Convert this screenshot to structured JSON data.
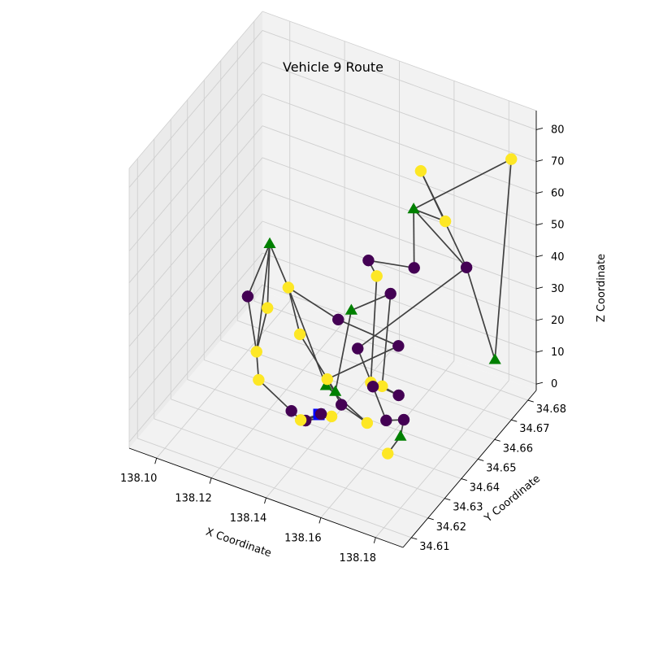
{
  "chart_data": {
    "type": "scatter",
    "projection": "3d",
    "title": "Vehicle 9 Route",
    "xlabel": "X Coordinate",
    "ylabel": "Y Coordinate",
    "zlabel": "Z Coordinate",
    "xlim": [
      138.09,
      138.19
    ],
    "ylim": [
      34.605,
      34.685
    ],
    "zlim": [
      -2,
      86
    ],
    "xticks": [
      "138.10",
      "138.12",
      "138.14",
      "138.16",
      "138.18"
    ],
    "yticks": [
      "34.61",
      "34.62",
      "34.63",
      "34.64",
      "34.65",
      "34.66",
      "34.67",
      "34.68"
    ],
    "zticks": [
      "0",
      "10",
      "20",
      "30",
      "40",
      "50",
      "60",
      "70",
      "80"
    ],
    "grid": true,
    "colors": {
      "route": "#404040",
      "purple_stop": "#440154",
      "yellow_stop": "#fde725",
      "triangle": "#008000",
      "depot": "#0000ff",
      "pane": "#f2f2f2",
      "pane_shade": "#ebebeb",
      "grid": "#cfcfcf"
    },
    "markers": {
      "purple_stop": "circle",
      "yellow_stop": "circle",
      "triangle": "triangle",
      "depot": "square"
    },
    "route": [
      {
        "x": 138.138,
        "y": 34.64,
        "z": 2,
        "kind": "depot"
      },
      {
        "x": 138.142,
        "y": 34.641,
        "z": 2,
        "kind": "yellow_stop"
      },
      {
        "x": 138.138,
        "y": 34.632,
        "z": 5,
        "kind": "purple_stop"
      },
      {
        "x": 138.14,
        "y": 34.638,
        "z": 4,
        "kind": "purple_stop"
      },
      {
        "x": 138.135,
        "y": 34.634,
        "z": 3,
        "kind": "yellow_stop"
      },
      {
        "x": 138.131,
        "y": 34.635,
        "z": 4,
        "kind": "purple_stop"
      },
      {
        "x": 138.116,
        "y": 34.64,
        "z": 6,
        "kind": "yellow_stop"
      },
      {
        "x": 138.114,
        "y": 34.642,
        "z": 13,
        "kind": "yellow_stop"
      },
      {
        "x": 138.112,
        "y": 34.64,
        "z": 31,
        "kind": "purple_stop"
      },
      {
        "x": 138.117,
        "y": 34.645,
        "z": 46,
        "kind": "triangle"
      },
      {
        "x": 138.118,
        "y": 34.642,
        "z": 28,
        "kind": "yellow_stop"
      },
      {
        "x": 138.114,
        "y": 34.642,
        "z": 13,
        "kind": "yellow_stop"
      },
      {
        "x": 138.117,
        "y": 34.645,
        "z": 46,
        "kind": "triangle"
      },
      {
        "x": 138.125,
        "y": 34.643,
        "z": 36,
        "kind": "yellow_stop"
      },
      {
        "x": 138.14,
        "y": 34.641,
        "z": 11,
        "kind": "triangle"
      },
      {
        "x": 138.155,
        "y": 34.641,
        "z": 4,
        "kind": "yellow_stop"
      },
      {
        "x": 138.145,
        "y": 34.642,
        "z": 6,
        "kind": "purple_stop"
      },
      {
        "x": 138.138,
        "y": 34.645,
        "z": 10,
        "kind": "yellow_stop"
      },
      {
        "x": 138.15,
        "y": 34.668,
        "z": 10,
        "kind": "purple_stop"
      },
      {
        "x": 138.142,
        "y": 34.645,
        "z": 30,
        "kind": "purple_stop"
      },
      {
        "x": 138.125,
        "y": 34.643,
        "z": 36,
        "kind": "yellow_stop"
      },
      {
        "x": 138.128,
        "y": 34.645,
        "z": 21,
        "kind": "yellow_stop"
      },
      {
        "x": 138.144,
        "y": 34.64,
        "z": 11,
        "kind": "triangle"
      },
      {
        "x": 138.148,
        "y": 34.643,
        "z": 36,
        "kind": "triangle"
      },
      {
        "x": 138.152,
        "y": 34.66,
        "z": 32,
        "kind": "purple_stop"
      },
      {
        "x": 138.155,
        "y": 34.65,
        "z": 10,
        "kind": "yellow_stop"
      },
      {
        "x": 138.158,
        "y": 34.655,
        "z": 5,
        "kind": "purple_stop"
      },
      {
        "x": 138.16,
        "y": 34.635,
        "z": 22,
        "kind": "yellow_stop"
      },
      {
        "x": 138.15,
        "y": 34.655,
        "z": 40,
        "kind": "yellow_stop"
      },
      {
        "x": 138.15,
        "y": 34.65,
        "z": 48,
        "kind": "purple_stop"
      },
      {
        "x": 138.16,
        "y": 34.661,
        "z": 42,
        "kind": "purple_stop"
      },
      {
        "x": 138.158,
        "y": 34.664,
        "z": 58,
        "kind": "triangle"
      },
      {
        "x": 138.172,
        "y": 34.66,
        "z": 61,
        "kind": "yellow_stop"
      },
      {
        "x": 138.16,
        "y": 34.665,
        "z": 70,
        "kind": "yellow_stop"
      },
      {
        "x": 138.17,
        "y": 34.676,
        "z": 36,
        "kind": "purple_stop"
      },
      {
        "x": 138.181,
        "y": 34.675,
        "z": 11,
        "kind": "triangle"
      },
      {
        "x": 138.19,
        "y": 34.67,
        "z": 80,
        "kind": "yellow_stop"
      },
      {
        "x": 138.158,
        "y": 34.664,
        "z": 58,
        "kind": "triangle"
      },
      {
        "x": 138.17,
        "y": 34.676,
        "z": 36,
        "kind": "purple_stop"
      },
      {
        "x": 138.14,
        "y": 34.66,
        "z": 11,
        "kind": "purple_stop"
      },
      {
        "x": 138.148,
        "y": 34.656,
        "z": 4,
        "kind": "purple_stop"
      },
      {
        "x": 138.165,
        "y": 34.636,
        "z": 11,
        "kind": "purple_stop"
      },
      {
        "x": 138.169,
        "y": 34.64,
        "z": 10,
        "kind": "purple_stop"
      },
      {
        "x": 138.169,
        "y": 34.638,
        "z": 6,
        "kind": "triangle"
      },
      {
        "x": 138.168,
        "y": 34.632,
        "z": 4,
        "kind": "yellow_stop"
      }
    ]
  }
}
